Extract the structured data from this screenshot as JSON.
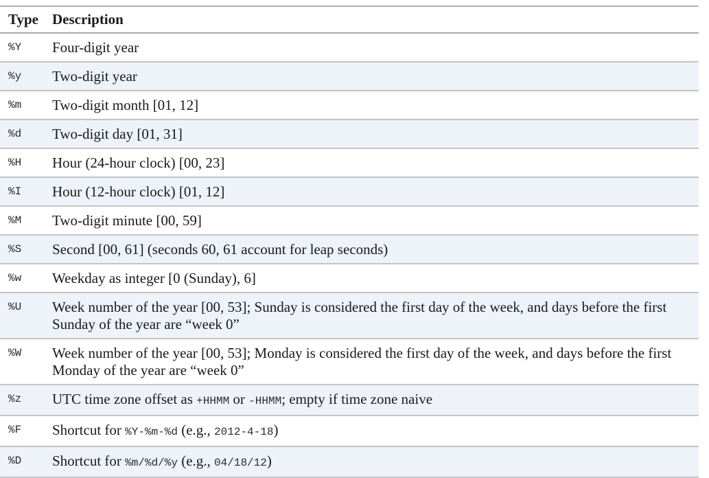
{
  "header": {
    "type": "Type",
    "description": "Description"
  },
  "rows": [
    {
      "code": "%Y",
      "parts": [
        {
          "text": "Four-digit year"
        }
      ]
    },
    {
      "code": "%y",
      "parts": [
        {
          "text": "Two-digit year"
        }
      ]
    },
    {
      "code": "%m",
      "parts": [
        {
          "text": "Two-digit month [01, 12]"
        }
      ]
    },
    {
      "code": "%d",
      "parts": [
        {
          "text": "Two-digit day [01, 31]"
        }
      ]
    },
    {
      "code": "%H",
      "parts": [
        {
          "text": "Hour (24-hour clock) [00, 23]"
        }
      ]
    },
    {
      "code": "%I",
      "parts": [
        {
          "text": "Hour (12-hour clock) [01, 12]"
        }
      ]
    },
    {
      "code": "%M",
      "parts": [
        {
          "text": "Two-digit minute [00, 59]"
        }
      ]
    },
    {
      "code": "%S",
      "parts": [
        {
          "text": "Second [00, 61] (seconds 60, 61 account for leap seconds)"
        }
      ]
    },
    {
      "code": "%w",
      "parts": [
        {
          "text": "Weekday as integer [0 (Sunday), 6]"
        }
      ]
    },
    {
      "code": "%U",
      "parts": [
        {
          "text": "Week number of the year [00, 53]; Sunday is considered the first day of the week, and days before the first Sunday of the year are “week 0”"
        }
      ]
    },
    {
      "code": "%W",
      "parts": [
        {
          "text": "Week number of the year [00, 53]; Monday is considered the first day of the week, and days before the first Monday of the year are “week 0”"
        }
      ]
    },
    {
      "code": "%z",
      "parts": [
        {
          "text": "UTC time zone offset as "
        },
        {
          "code": "+HHMM"
        },
        {
          "text": " or "
        },
        {
          "code": "-HHMM"
        },
        {
          "text": "; empty if time zone naive"
        }
      ]
    },
    {
      "code": "%F",
      "parts": [
        {
          "text": "Shortcut for "
        },
        {
          "code": "%Y-%m-%d"
        },
        {
          "text": " (e.g., "
        },
        {
          "code": "2012-4-18"
        },
        {
          "text": ")"
        }
      ]
    },
    {
      "code": "%D",
      "parts": [
        {
          "text": "Shortcut for "
        },
        {
          "code": "%m/%d/%y"
        },
        {
          "text": " (e.g., "
        },
        {
          "code": "04/18/12"
        },
        {
          "text": ")"
        }
      ]
    }
  ]
}
